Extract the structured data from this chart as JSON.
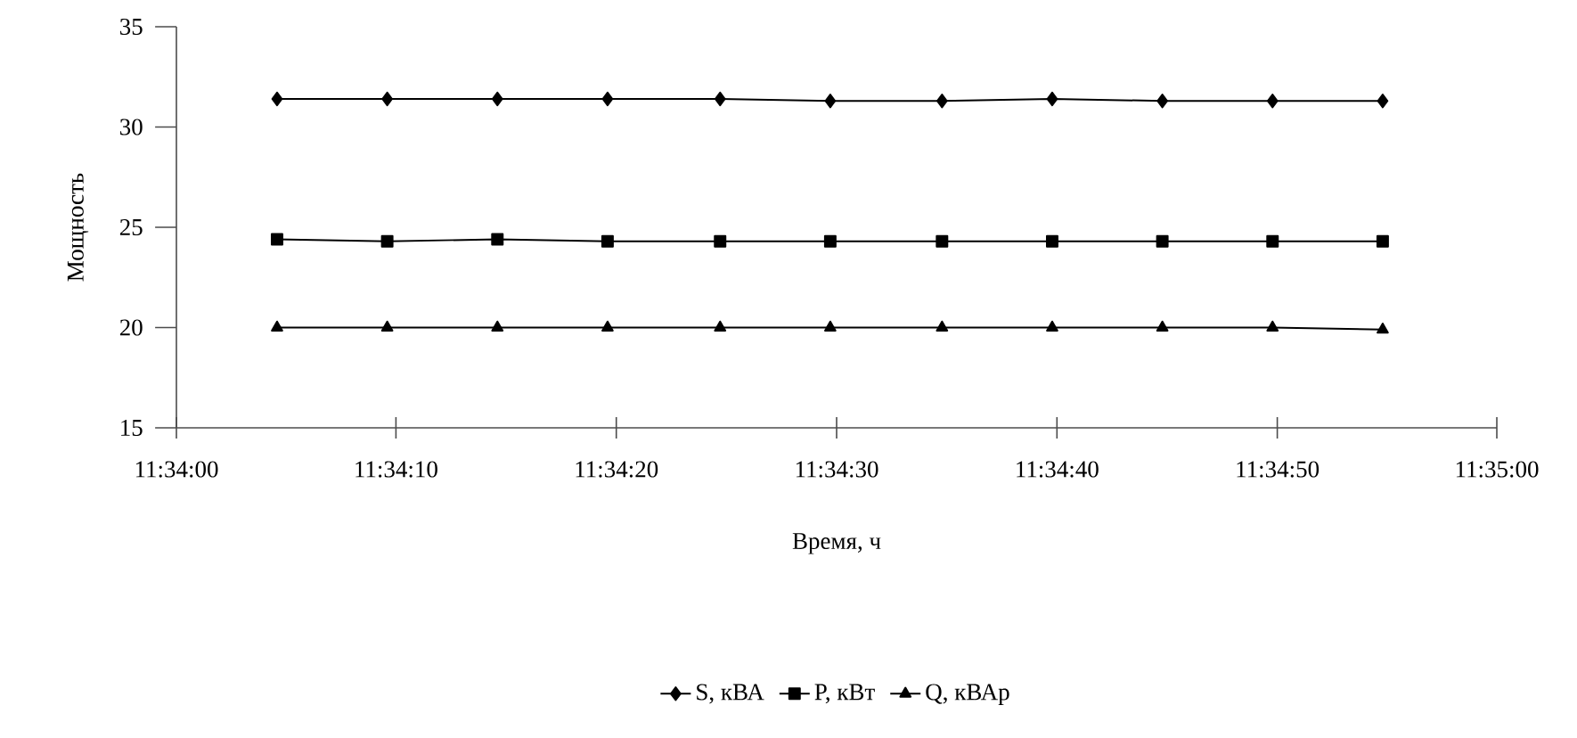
{
  "chart_data": {
    "type": "line",
    "xlabel": "Время, ч",
    "ylabel": "Мощность",
    "xlim": [
      11.56667,
      11.58333
    ],
    "xticks": [
      {
        "value": 11.56667,
        "label": "11:34:00"
      },
      {
        "value": 11.56944,
        "label": "11:34:10"
      },
      {
        "value": 11.57222,
        "label": "11:34:20"
      },
      {
        "value": 11.575,
        "label": "11:34:30"
      },
      {
        "value": 11.57778,
        "label": "11:34:40"
      },
      {
        "value": 11.58056,
        "label": "11:34:50"
      },
      {
        "value": 11.58333,
        "label": "11:35:00"
      }
    ],
    "ylim": [
      15,
      35
    ],
    "yticks": [
      15,
      20,
      25,
      30,
      35
    ],
    "x": [
      11.56794,
      11.56933,
      11.57072,
      11.57211,
      11.57353,
      11.57492,
      11.57633,
      11.57772,
      11.57911,
      11.5805,
      11.58189
    ],
    "series": [
      {
        "name": "S, кВА",
        "color": "#000000",
        "marker": "diamond",
        "values": [
          31.4,
          31.4,
          31.4,
          31.4,
          31.4,
          31.3,
          31.3,
          31.4,
          31.3,
          31.3,
          31.3
        ]
      },
      {
        "name": "P, кВт",
        "color": "#000000",
        "marker": "square",
        "values": [
          24.4,
          24.3,
          24.4,
          24.3,
          24.3,
          24.3,
          24.3,
          24.3,
          24.3,
          24.3,
          24.3
        ]
      },
      {
        "name": "Q, кВАр",
        "color": "#000000",
        "marker": "triangle",
        "values": [
          20.0,
          20.0,
          20.0,
          20.0,
          20.0,
          20.0,
          20.0,
          20.0,
          20.0,
          20.0,
          19.9
        ]
      }
    ],
    "line_style": "solid",
    "grid": false,
    "legend": "bottom"
  }
}
